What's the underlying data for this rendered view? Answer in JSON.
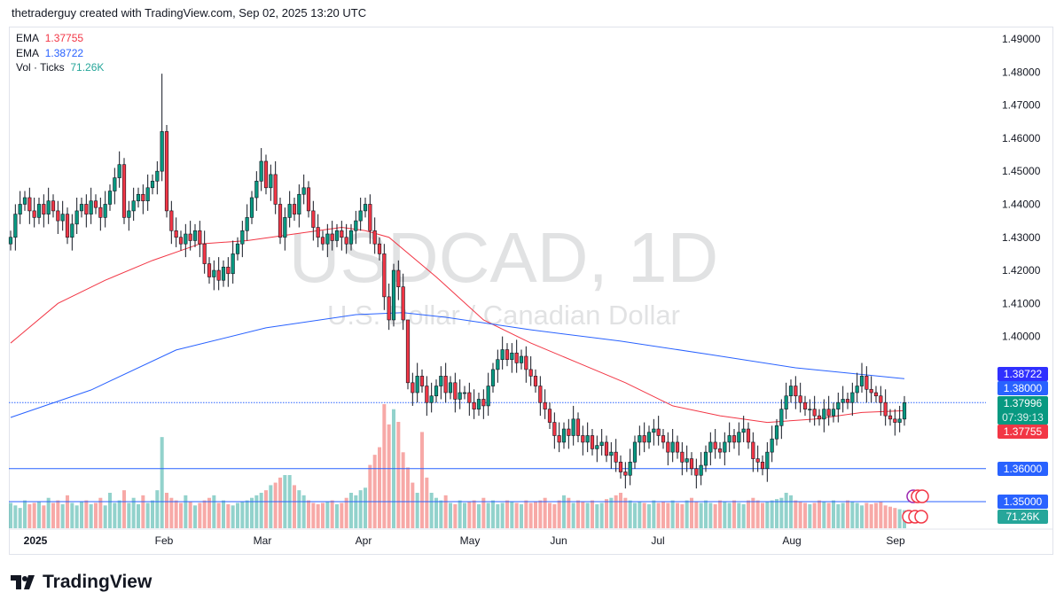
{
  "header": {
    "attribution": "thetraderguy created with TradingView.com, Sep 02, 2025 13:20 UTC"
  },
  "legend": [
    {
      "label": "EMA",
      "value": "1.37755"
    },
    {
      "label": "EMA",
      "value": "1.38722"
    },
    {
      "label": "Vol · Ticks",
      "value": "71.26K"
    }
  ],
  "watermark": {
    "symbol": "USDCAD, 1D",
    "name": "U.S. Dollar / Canadian Dollar"
  },
  "logo": {
    "text": "TradingView"
  },
  "colors": {
    "up": "#089981",
    "down": "#f23645",
    "ema_fast": "#f23645",
    "ema_slow": "#2962ff",
    "line": "#2962ff"
  },
  "price_labels": [
    {
      "text": "1.38722",
      "color": "#3030ff"
    },
    {
      "text": "1.38000",
      "color": "#2962ff"
    },
    {
      "text": "1.37996",
      "sub": "07:39:13",
      "color": "#089981"
    },
    {
      "text": "1.37755",
      "color": "#f23645"
    },
    {
      "text": "1.36000",
      "color": "#2962ff"
    },
    {
      "text": "1.35000",
      "color": "#2962ff"
    },
    {
      "text": "71.26K",
      "color": "#26a69a"
    }
  ],
  "chart_data": {
    "type": "candlestick",
    "symbol": "USDCAD",
    "interval": "1D",
    "ylim": [
      1.345,
      1.495
    ],
    "y_ticks": [
      "1.49000",
      "1.48000",
      "1.47000",
      "1.46000",
      "1.45000",
      "1.44000",
      "1.43000",
      "1.42000",
      "1.41000",
      "1.40000"
    ],
    "x_ticks": [
      "2025",
      "Feb",
      "Mar",
      "Apr",
      "May",
      "Jun",
      "Jul",
      "Aug",
      "Sep"
    ],
    "horizontal_lines": [
      1.38,
      1.36,
      1.35
    ],
    "closes": [
      1.43,
      1.437,
      1.44,
      1.442,
      1.438,
      1.436,
      1.44,
      1.437,
      1.441,
      1.438,
      1.435,
      1.437,
      1.43,
      1.434,
      1.438,
      1.44,
      1.437,
      1.441,
      1.439,
      1.436,
      1.44,
      1.444,
      1.448,
      1.452,
      1.436,
      1.438,
      1.441,
      1.443,
      1.441,
      1.445,
      1.447,
      1.45,
      1.462,
      1.438,
      1.432,
      1.43,
      1.428,
      1.431,
      1.429,
      1.432,
      1.428,
      1.422,
      1.418,
      1.42,
      1.417,
      1.421,
      1.419,
      1.425,
      1.428,
      1.432,
      1.436,
      1.442,
      1.447,
      1.453,
      1.445,
      1.449,
      1.44,
      1.43,
      1.436,
      1.44,
      1.437,
      1.443,
      1.445,
      1.438,
      1.433,
      1.43,
      1.428,
      1.431,
      1.429,
      1.432,
      1.43,
      1.428,
      1.432,
      1.435,
      1.438,
      1.44,
      1.432,
      1.428,
      1.425,
      1.412,
      1.405,
      1.42,
      1.415,
      1.405,
      1.386,
      1.383,
      1.388,
      1.385,
      1.38,
      1.382,
      1.385,
      1.388,
      1.383,
      1.386,
      1.381,
      1.383,
      1.383,
      1.38,
      1.378,
      1.381,
      1.379,
      1.385,
      1.39,
      1.393,
      1.396,
      1.393,
      1.395,
      1.392,
      1.394,
      1.39,
      1.388,
      1.385,
      1.38,
      1.378,
      1.374,
      1.37,
      1.368,
      1.372,
      1.37,
      1.375,
      1.37,
      1.368,
      1.37,
      1.366,
      1.367,
      1.368,
      1.364,
      1.365,
      1.362,
      1.359,
      1.358,
      1.362,
      1.368,
      1.37,
      1.368,
      1.371,
      1.372,
      1.37,
      1.368,
      1.365,
      1.368,
      1.365,
      1.362,
      1.363,
      1.36,
      1.358,
      1.361,
      1.365,
      1.368,
      1.366,
      1.365,
      1.368,
      1.37,
      1.368,
      1.371,
      1.372,
      1.368,
      1.363,
      1.362,
      1.36,
      1.365,
      1.369,
      1.373,
      1.378,
      1.382,
      1.385,
      1.382,
      1.38,
      1.378,
      1.378,
      1.376,
      1.375,
      1.378,
      1.376,
      1.378,
      1.38,
      1.381,
      1.38,
      1.383,
      1.385,
      1.388,
      1.384,
      1.383,
      1.382,
      1.38,
      1.376,
      1.375,
      1.374,
      1.375,
      1.37996
    ],
    "high_overrides": [
      {
        "bar": 32,
        "high": 1.4795
      },
      {
        "bar": 84,
        "high": 1.405
      },
      {
        "bar": 180,
        "high": 1.392
      }
    ],
    "volume_k": [
      100,
      90,
      80,
      110,
      95,
      100,
      105,
      90,
      120,
      100,
      110,
      95,
      130,
      100,
      90,
      105,
      110,
      95,
      100,
      120,
      90,
      140,
      100,
      110,
      150,
      100,
      120,
      95,
      130,
      100,
      110,
      150,
      360,
      140,
      120,
      110,
      100,
      130,
      105,
      90,
      100,
      110,
      120,
      130,
      100,
      110,
      95,
      90,
      100,
      105,
      110,
      120,
      130,
      140,
      150,
      170,
      180,
      200,
      210,
      210,
      170,
      150,
      130,
      110,
      100,
      95,
      100,
      105,
      110,
      95,
      100,
      120,
      140,
      130,
      150,
      160,
      250,
      290,
      320,
      490,
      410,
      470,
      420,
      300,
      240,
      180,
      140,
      380,
      200,
      140,
      120,
      110,
      130,
      100,
      95,
      110,
      100,
      105,
      110,
      95,
      120,
      100,
      110,
      95,
      100,
      110,
      105,
      100,
      95,
      110,
      100,
      105,
      110,
      120,
      100,
      95,
      110,
      130,
      120,
      100,
      110,
      105,
      100,
      110,
      95,
      100,
      115,
      120,
      130,
      140,
      120,
      110,
      100,
      105,
      100,
      95,
      110,
      100,
      105,
      100,
      110,
      100,
      95,
      110,
      120,
      105,
      100,
      110,
      100,
      95,
      110,
      105,
      100,
      110,
      100,
      95,
      110,
      120,
      110,
      100,
      105,
      110,
      115,
      120,
      140,
      130,
      110,
      105,
      100,
      95,
      100,
      110,
      105,
      100,
      110,
      95,
      100,
      110,
      105,
      100,
      90,
      100,
      95,
      100,
      105,
      90,
      85,
      80,
      75,
      71.26
    ],
    "ema_fast": [
      [
        0,
        1.398
      ],
      [
        10,
        1.41
      ],
      [
        20,
        1.417
      ],
      [
        30,
        1.423
      ],
      [
        40,
        1.428
      ],
      [
        50,
        1.429
      ],
      [
        60,
        1.431
      ],
      [
        70,
        1.433
      ],
      [
        75,
        1.432
      ],
      [
        80,
        1.43
      ],
      [
        90,
        1.418
      ],
      [
        100,
        1.405
      ],
      [
        110,
        1.398
      ],
      [
        120,
        1.392
      ],
      [
        130,
        1.386
      ],
      [
        140,
        1.379
      ],
      [
        150,
        1.376
      ],
      [
        160,
        1.374
      ],
      [
        170,
        1.375
      ],
      [
        180,
        1.377
      ],
      [
        189,
        1.37755
      ]
    ],
    "ema_slow": [
      [
        0,
        1.3755
      ],
      [
        17,
        1.3838
      ],
      [
        35,
        1.3959
      ],
      [
        54,
        1.4026
      ],
      [
        73,
        1.4066
      ],
      [
        83,
        1.4072
      ],
      [
        92,
        1.4058
      ],
      [
        110,
        1.402
      ],
      [
        129,
        1.3986
      ],
      [
        148,
        1.3945
      ],
      [
        166,
        1.3905
      ],
      [
        189,
        1.38722
      ]
    ]
  }
}
